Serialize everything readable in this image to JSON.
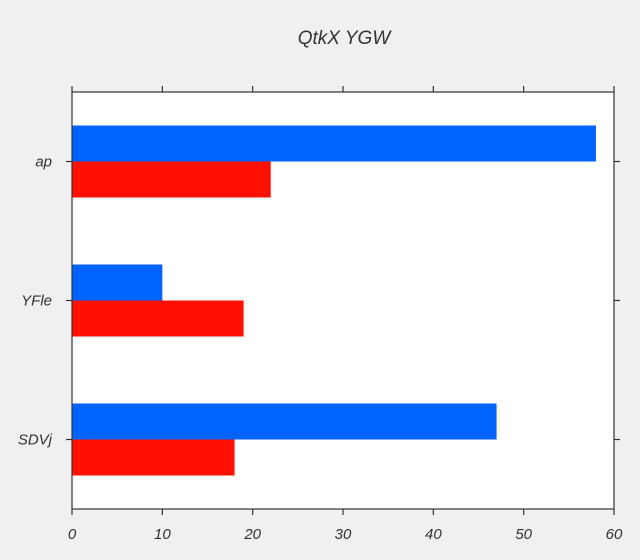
{
  "chart_data": {
    "type": "bar",
    "orientation": "horizontal",
    "title": "QtkX YGW",
    "xlabel": "",
    "ylabel": "",
    "categories": [
      "ap",
      "YFle",
      "SDVj"
    ],
    "series": [
      {
        "values": [
          58,
          10,
          47
        ],
        "color": "#0062ff"
      },
      {
        "values": [
          22,
          19,
          18
        ],
        "color": "#ff1000"
      }
    ],
    "xlim": [
      0,
      60
    ],
    "xticks": [
      0,
      10,
      20,
      30,
      40,
      50,
      60
    ],
    "grid": false,
    "legend": "none"
  },
  "colors": {
    "background": "#f0f0f0",
    "plot_background": "#ffffff",
    "axis": "#333333"
  }
}
